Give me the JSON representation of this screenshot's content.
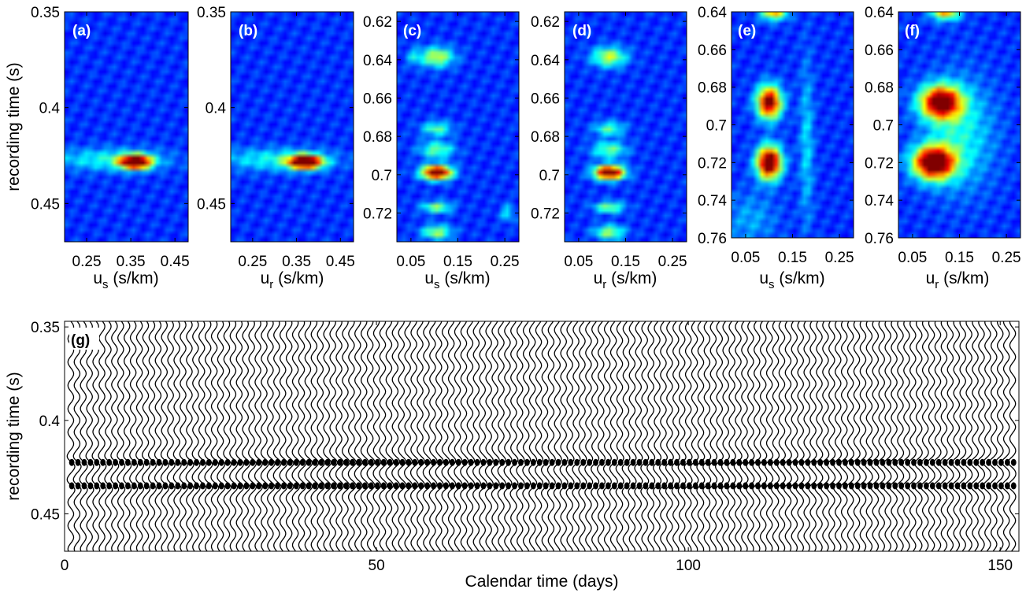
{
  "colormap": "jet",
  "chart_data": [
    {
      "type": "heatmap",
      "panel": "(a)",
      "xlabel": {
        "main": "u",
        "sub": "s",
        "unit": " (s/km)"
      },
      "ylabel": "recording time (s)",
      "xlim": [
        0.2,
        0.48
      ],
      "ylim": [
        0.35,
        0.47
      ],
      "xticks": [
        0.25,
        0.35,
        0.45
      ],
      "xticklabels": [
        "0.25",
        "0.35",
        "0.45"
      ],
      "yticks": [
        0.35,
        0.4,
        0.45
      ],
      "yticklabels": [
        "0.35",
        "0.4",
        "0.45"
      ],
      "peaks": [
        {
          "x": 0.36,
          "y": 0.4283,
          "amp": 1.0,
          "sx": 0.025,
          "sy": 0.0025
        },
        {
          "x": 0.3,
          "y": 0.427,
          "amp": 0.22,
          "sx": 0.09,
          "sy": 0.004
        }
      ]
    },
    {
      "type": "heatmap",
      "panel": "(b)",
      "xlabel": {
        "main": "u",
        "sub": "r",
        "unit": " (s/km)"
      },
      "ylabel": "",
      "xlim": [
        0.2,
        0.48
      ],
      "ylim": [
        0.35,
        0.47
      ],
      "xticks": [
        0.25,
        0.35,
        0.45
      ],
      "xticklabels": [
        "0.25",
        "0.35",
        "0.45"
      ],
      "yticks": [
        0.35,
        0.4,
        0.45
      ],
      "yticklabels": [
        "0.35",
        "0.4",
        "0.45"
      ],
      "peaks": [
        {
          "x": 0.37,
          "y": 0.4283,
          "amp": 1.0,
          "sx": 0.027,
          "sy": 0.0025
        },
        {
          "x": 0.3,
          "y": 0.427,
          "amp": 0.22,
          "sx": 0.09,
          "sy": 0.004
        }
      ]
    },
    {
      "type": "heatmap",
      "panel": "(c)",
      "xlabel": {
        "main": "u",
        "sub": "s",
        "unit": " (s/km)"
      },
      "ylabel": "",
      "xlim": [
        0.02,
        0.28
      ],
      "ylim": [
        0.615,
        0.735
      ],
      "xticks": [
        0.05,
        0.15,
        0.25
      ],
      "xticklabels": [
        "0.05",
        "0.15",
        "0.25"
      ],
      "yticks": [
        0.62,
        0.64,
        0.66,
        0.68,
        0.7,
        0.72
      ],
      "yticklabels": [
        "0.62",
        "0.64",
        "0.66",
        "0.68",
        "0.7",
        "0.72"
      ],
      "peaks": [
        {
          "x": 0.105,
          "y": 0.6988,
          "amp": 1.0,
          "sx": 0.022,
          "sy": 0.0025
        },
        {
          "x": 0.105,
          "y": 0.6385,
          "amp": 0.42,
          "sx": 0.025,
          "sy": 0.0035
        },
        {
          "x": 0.105,
          "y": 0.676,
          "amp": 0.3,
          "sx": 0.022,
          "sy": 0.0025
        },
        {
          "x": 0.105,
          "y": 0.687,
          "amp": 0.32,
          "sx": 0.025,
          "sy": 0.003
        },
        {
          "x": 0.105,
          "y": 0.717,
          "amp": 0.36,
          "sx": 0.022,
          "sy": 0.002
        },
        {
          "x": 0.105,
          "y": 0.73,
          "amp": 0.38,
          "sx": 0.022,
          "sy": 0.0025
        },
        {
          "x": 0.255,
          "y": 0.72,
          "amp": 0.2,
          "sx": 0.01,
          "sy": 0.003
        },
        {
          "x": 0.055,
          "y": 0.6385,
          "amp": 0.15,
          "sx": 0.01,
          "sy": 0.003
        }
      ]
    },
    {
      "type": "heatmap",
      "panel": "(d)",
      "xlabel": {
        "main": "u",
        "sub": "r",
        "unit": " (s/km)"
      },
      "ylabel": "",
      "xlim": [
        0.02,
        0.28
      ],
      "ylim": [
        0.615,
        0.735
      ],
      "xticks": [
        0.05,
        0.15,
        0.25
      ],
      "xticklabels": [
        "0.05",
        "0.15",
        "0.25"
      ],
      "yticks": [
        0.62,
        0.64,
        0.66,
        0.68,
        0.7,
        0.72
      ],
      "yticklabels": [
        "0.62",
        "0.64",
        "0.66",
        "0.68",
        "0.7",
        "0.72"
      ],
      "peaks": [
        {
          "x": 0.115,
          "y": 0.6988,
          "amp": 1.0,
          "sx": 0.022,
          "sy": 0.0025
        },
        {
          "x": 0.115,
          "y": 0.6385,
          "amp": 0.42,
          "sx": 0.025,
          "sy": 0.0035
        },
        {
          "x": 0.115,
          "y": 0.676,
          "amp": 0.3,
          "sx": 0.022,
          "sy": 0.0025
        },
        {
          "x": 0.115,
          "y": 0.687,
          "amp": 0.32,
          "sx": 0.025,
          "sy": 0.003
        },
        {
          "x": 0.115,
          "y": 0.717,
          "amp": 0.36,
          "sx": 0.022,
          "sy": 0.002
        },
        {
          "x": 0.115,
          "y": 0.73,
          "amp": 0.38,
          "sx": 0.022,
          "sy": 0.0025
        }
      ]
    },
    {
      "type": "heatmap",
      "panel": "(e)",
      "xlabel": {
        "main": "u",
        "sub": "s",
        "unit": " (s/km)"
      },
      "ylabel": "",
      "xlim": [
        0.02,
        0.28
      ],
      "ylim": [
        0.64,
        0.76
      ],
      "xticks": [
        0.05,
        0.15,
        0.25
      ],
      "xticklabels": [
        "0.05",
        "0.15",
        "0.25"
      ],
      "yticks": [
        0.64,
        0.66,
        0.68,
        0.7,
        0.72,
        0.74,
        0.76
      ],
      "yticklabels": [
        "0.64",
        "0.66",
        "0.68",
        "0.7",
        "0.72",
        "0.74",
        "0.76"
      ],
      "peaks": [
        {
          "x": 0.1,
          "y": 0.72,
          "amp": 1.0,
          "sx": 0.018,
          "sy": 0.006
        },
        {
          "x": 0.1,
          "y": 0.688,
          "amp": 0.88,
          "sx": 0.018,
          "sy": 0.006
        },
        {
          "x": 0.11,
          "y": 0.64,
          "amp": 0.55,
          "sx": 0.02,
          "sy": 0.003
        },
        {
          "x": 0.18,
          "y": 0.71,
          "amp": 0.18,
          "sx": 0.01,
          "sy": 0.03
        },
        {
          "x": 0.06,
          "y": 0.75,
          "amp": 0.12,
          "sx": 0.04,
          "sy": 0.01
        }
      ]
    },
    {
      "type": "heatmap",
      "panel": "(f)",
      "xlabel": {
        "main": "u",
        "sub": "r",
        "unit": " (s/km)"
      },
      "ylabel": "",
      "xlim": [
        0.02,
        0.28
      ],
      "ylim": [
        0.64,
        0.76
      ],
      "xticks": [
        0.05,
        0.15,
        0.25
      ],
      "xticklabels": [
        "0.05",
        "0.15",
        "0.25"
      ],
      "yticks": [
        0.64,
        0.66,
        0.68,
        0.7,
        0.72,
        0.74,
        0.76
      ],
      "yticklabels": [
        "0.64",
        "0.66",
        "0.68",
        "0.7",
        "0.72",
        "0.74",
        "0.76"
      ],
      "peaks": [
        {
          "x": 0.095,
          "y": 0.72,
          "amp": 1.0,
          "sx": 0.03,
          "sy": 0.006
        },
        {
          "x": 0.11,
          "y": 0.688,
          "amp": 0.9,
          "sx": 0.03,
          "sy": 0.006
        },
        {
          "x": 0.12,
          "y": 0.64,
          "amp": 0.55,
          "sx": 0.022,
          "sy": 0.003
        },
        {
          "x": 0.15,
          "y": 0.705,
          "amp": 0.22,
          "sx": 0.05,
          "sy": 0.02
        }
      ]
    },
    {
      "type": "wiggle",
      "panel": "(g)",
      "xlabel": "Calendar time (days)",
      "ylabel": "recording time (s)",
      "xlim": [
        0,
        153
      ],
      "ylim": [
        0.347,
        0.47
      ],
      "xticks": [
        0,
        50,
        100,
        150
      ],
      "xticklabels": [
        "0",
        "50",
        "100",
        "150"
      ],
      "yticks": [
        0.35,
        0.4,
        0.45
      ],
      "yticklabels": [
        "0.35",
        "0.4",
        "0.45"
      ],
      "trace_spacing_days": 1,
      "dominant_period_s": 0.0125,
      "strong_events_s": [
        0.4225,
        0.435
      ]
    }
  ]
}
